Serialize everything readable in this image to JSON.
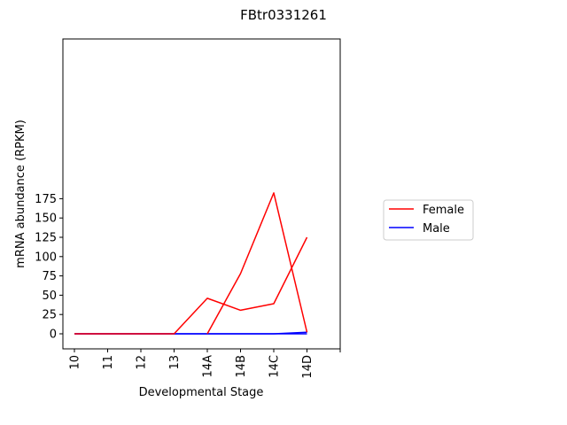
{
  "chart_data": {
    "type": "line",
    "title": "FBtr0331261",
    "xlabel": "Developmental Stage",
    "ylabel": "mRNA abundance (RPKM)",
    "categories": [
      "10",
      "11",
      "12",
      "13",
      "14A",
      "14B",
      "14C",
      "14D",
      ""
    ],
    "yticks": [
      0,
      25,
      50,
      75,
      100,
      125,
      150,
      175
    ],
    "ylim": [
      -10,
      191
    ],
    "grid": false,
    "legend_position": "right",
    "series": [
      {
        "name": "Female",
        "color": "#ff0000",
        "segments": [
          {
            "x": [
              0,
              1,
              2,
              3,
              4,
              5,
              6,
              7
            ],
            "y": [
              0,
              0,
              0,
              0,
              46,
              30.5,
              39,
              125
            ]
          },
          {
            "x": [
              4,
              5,
              6,
              7
            ],
            "y": [
              0,
              78,
              182.5,
              2
            ]
          }
        ]
      },
      {
        "name": "Male",
        "color": "#0000ff",
        "segments": [
          {
            "x": [
              0,
              1,
              2,
              3,
              4,
              5,
              6,
              7
            ],
            "y": [
              0,
              0,
              0,
              0,
              0,
              0,
              0,
              2
            ]
          },
          {
            "x": [
              0,
              1,
              2,
              3,
              4,
              5,
              6,
              7
            ],
            "y": [
              0,
              0,
              0,
              0,
              0,
              0,
              0,
              0
            ]
          }
        ]
      }
    ]
  }
}
